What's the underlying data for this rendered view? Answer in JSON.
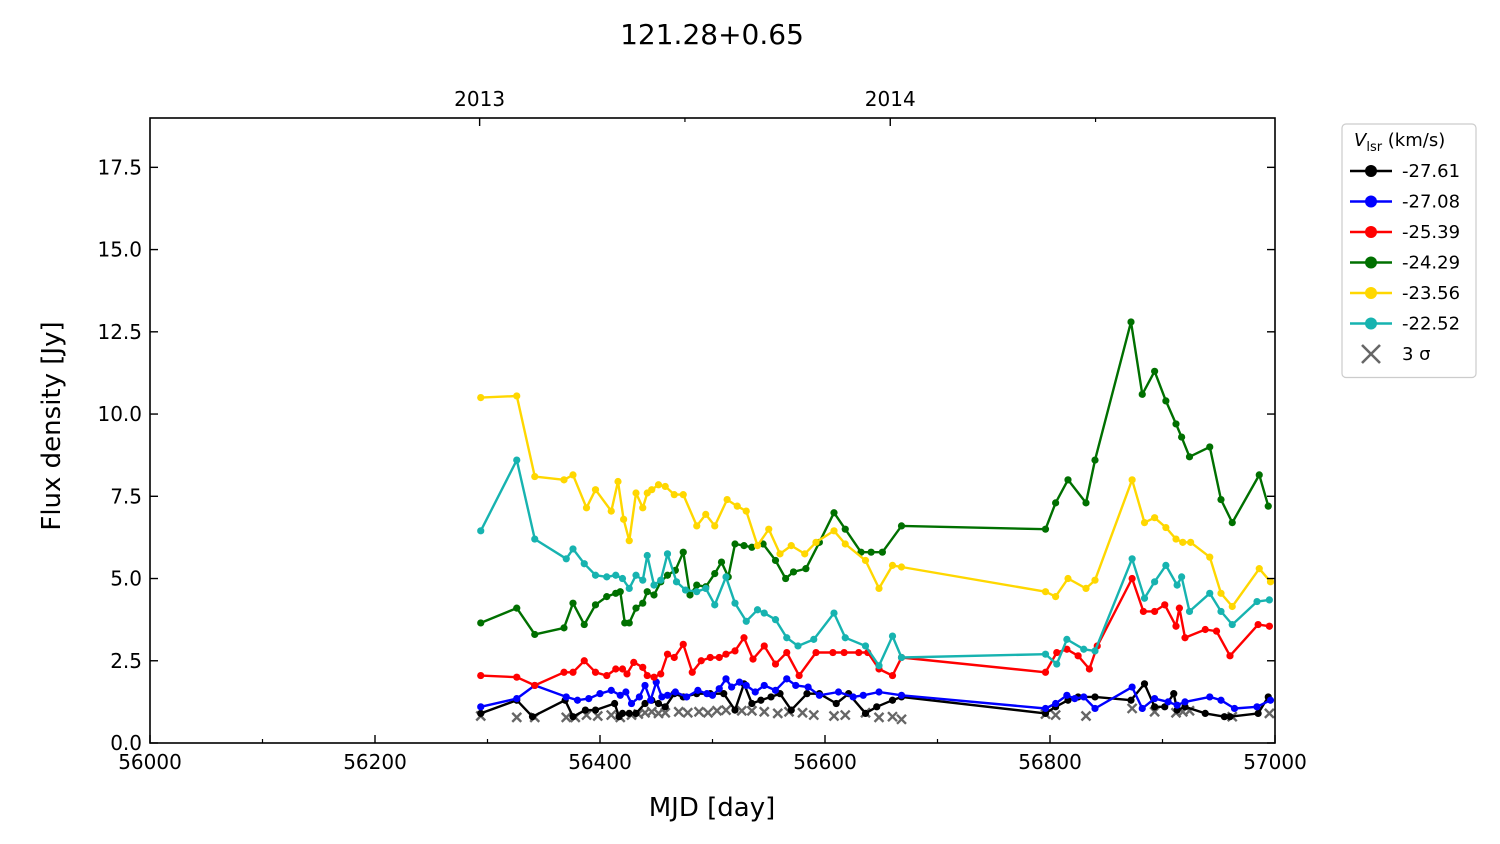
{
  "chart_data": {
    "type": "line",
    "title": "121.28+0.65",
    "xlabel": "MJD [day]",
    "ylabel": "Flux density [Jy]",
    "xlim": [
      56000,
      57000
    ],
    "ylim": [
      0.0,
      19.0
    ],
    "xticks": [
      56000,
      56200,
      56400,
      56600,
      56800,
      57000
    ],
    "xtick_labels": [
      "56000",
      "56200",
      "56400",
      "56600",
      "56800",
      "57000"
    ],
    "yticks": [
      0.0,
      2.5,
      5.0,
      7.5,
      10.0,
      12.5,
      15.0,
      17.5
    ],
    "ytick_labels": [
      "0.0",
      "2.5",
      "5.0",
      "7.5",
      "10.0",
      "12.5",
      "15.0",
      "17.5"
    ],
    "top_axis": {
      "ticks": [
        56293,
        56658
      ],
      "tick_labels": [
        "2013",
        "2014"
      ]
    },
    "legend": {
      "title_main": "V",
      "title_sub": "lsr",
      "title_unit": " (km/s)",
      "placement": "outside-right",
      "sigma_label": "3 σ"
    },
    "series": [
      {
        "name": "-27.61",
        "color": "#000000",
        "x": [
          56294,
          56326,
          56340,
          56369,
          56376,
          56387,
          56396,
          56413,
          56417,
          56420,
          56426,
          56432,
          56440,
          56446,
          56452,
          56458,
          56466,
          56474,
          56486,
          56498,
          56510,
          56520,
          56528,
          56535,
          56543,
          56552,
          56560,
          56570,
          56584,
          56595,
          56610,
          56621,
          56636,
          56646,
          56660,
          56668,
          56796,
          56805,
          56816,
          56825,
          56840,
          56872,
          56884,
          56893,
          56902,
          56910,
          56913,
          56920,
          56938,
          56955,
          56960,
          56985,
          56994
        ],
        "y": [
          0.9,
          1.3,
          0.8,
          1.3,
          0.8,
          1.0,
          1.0,
          1.2,
          0.8,
          0.9,
          0.9,
          0.9,
          1.2,
          1.3,
          1.2,
          1.1,
          1.5,
          1.4,
          1.5,
          1.5,
          1.5,
          1.0,
          1.8,
          1.2,
          1.3,
          1.4,
          1.5,
          1.0,
          1.5,
          1.5,
          1.2,
          1.5,
          0.9,
          1.1,
          1.3,
          1.4,
          0.9,
          1.1,
          1.3,
          1.4,
          1.4,
          1.3,
          1.8,
          1.1,
          1.1,
          1.5,
          1.0,
          1.1,
          0.9,
          0.8,
          0.8,
          0.9,
          1.4
        ]
      },
      {
        "name": "-27.08",
        "color": "#0000ff",
        "x": [
          56294,
          56326,
          56342,
          56370,
          56380,
          56390,
          56400,
          56410,
          56418,
          56423,
          56428,
          56435,
          56440,
          56445,
          56450,
          56455,
          56460,
          56467,
          56477,
          56487,
          56495,
          56500,
          56506,
          56512,
          56517,
          56524,
          56530,
          56538,
          56546,
          56556,
          56566,
          56574,
          56585,
          56595,
          56612,
          56625,
          56634,
          56648,
          56668,
          56796,
          56805,
          56815,
          56822,
          56830,
          56840,
          56873,
          56882,
          56893,
          56905,
          56913,
          56920,
          56942,
          56952,
          56964,
          56984,
          56996
        ],
        "y": [
          1.1,
          1.35,
          1.75,
          1.4,
          1.3,
          1.35,
          1.5,
          1.6,
          1.45,
          1.55,
          1.2,
          1.4,
          1.75,
          1.3,
          1.85,
          1.4,
          1.45,
          1.55,
          1.4,
          1.6,
          1.5,
          1.45,
          1.65,
          1.95,
          1.7,
          1.85,
          1.75,
          1.55,
          1.75,
          1.6,
          1.95,
          1.75,
          1.7,
          1.45,
          1.55,
          1.4,
          1.45,
          1.55,
          1.45,
          1.05,
          1.2,
          1.45,
          1.35,
          1.4,
          1.05,
          1.7,
          1.05,
          1.35,
          1.25,
          1.15,
          1.25,
          1.4,
          1.3,
          1.05,
          1.1,
          1.3
        ]
      },
      {
        "name": "-25.39",
        "color": "#ff0000",
        "x": [
          56294,
          56326,
          56342,
          56368,
          56376,
          56386,
          56396,
          56406,
          56414,
          56420,
          56424,
          56430,
          56438,
          56442,
          56448,
          56454,
          56460,
          56466,
          56474,
          56482,
          56490,
          56498,
          56506,
          56512,
          56520,
          56528,
          56536,
          56546,
          56556,
          56566,
          56577,
          56592,
          56607,
          56617,
          56630,
          56638,
          56648,
          56660,
          56668,
          56796,
          56806,
          56815,
          56825,
          56835,
          56842,
          56873,
          56883,
          56893,
          56902,
          56912,
          56915,
          56920,
          56938,
          56948,
          56960,
          56985,
          56995
        ],
        "y": [
          2.05,
          2.0,
          1.75,
          2.15,
          2.15,
          2.5,
          2.15,
          2.05,
          2.25,
          2.25,
          2.1,
          2.45,
          2.3,
          2.05,
          2.0,
          2.1,
          2.7,
          2.6,
          3.0,
          2.15,
          2.5,
          2.6,
          2.6,
          2.7,
          2.8,
          3.2,
          2.55,
          2.95,
          2.4,
          2.75,
          2.05,
          2.75,
          2.75,
          2.75,
          2.75,
          2.75,
          2.25,
          2.05,
          2.6,
          2.15,
          2.75,
          2.85,
          2.65,
          2.25,
          2.95,
          5.0,
          4.0,
          4.0,
          4.2,
          3.55,
          4.1,
          3.2,
          3.45,
          3.4,
          2.65,
          3.6,
          3.55
        ]
      },
      {
        "name": "-24.29",
        "color": "#007000",
        "x": [
          56294,
          56326,
          56342,
          56368,
          56376,
          56386,
          56396,
          56406,
          56414,
          56418,
          56422,
          56426,
          56432,
          56438,
          56442,
          56448,
          56454,
          56460,
          56467,
          56474,
          56480,
          56486,
          56494,
          56502,
          56508,
          56514,
          56520,
          56528,
          56535,
          56545,
          56556,
          56565,
          56572,
          56583,
          56595,
          56608,
          56618,
          56632,
          56641,
          56651,
          56668,
          56796,
          56805,
          56816,
          56832,
          56840,
          56872,
          56882,
          56893,
          56903,
          56912,
          56917,
          56924,
          56942,
          56952,
          56962,
          56986,
          56994
        ],
        "y": [
          3.65,
          4.1,
          3.3,
          3.5,
          4.25,
          3.6,
          4.2,
          4.45,
          4.55,
          4.6,
          3.65,
          3.65,
          4.1,
          4.25,
          4.6,
          4.5,
          4.9,
          5.1,
          5.25,
          5.8,
          4.5,
          4.8,
          4.75,
          5.15,
          5.5,
          5.05,
          6.05,
          6.0,
          5.95,
          6.05,
          5.55,
          5.0,
          5.2,
          5.3,
          6.1,
          7.0,
          6.5,
          5.8,
          5.8,
          5.8,
          6.6,
          6.5,
          7.3,
          8.0,
          7.3,
          8.6,
          12.8,
          10.6,
          11.3,
          10.4,
          9.7,
          9.3,
          8.7,
          9.0,
          7.4,
          6.7,
          8.15,
          7.2
        ]
      },
      {
        "name": "-23.56",
        "color": "#ffd700",
        "x": [
          56294,
          56326,
          56342,
          56368,
          56376,
          56388,
          56396,
          56410,
          56416,
          56421,
          56426,
          56432,
          56438,
          56442,
          56446,
          56452,
          56458,
          56466,
          56474,
          56486,
          56494,
          56502,
          56513,
          56522,
          56530,
          56540,
          56550,
          56560,
          56570,
          56582,
          56592,
          56608,
          56618,
          56636,
          56648,
          56660,
          56668,
          56796,
          56805,
          56816,
          56832,
          56840,
          56873,
          56884,
          56893,
          56903,
          56912,
          56918,
          56925,
          56942,
          56952,
          56962,
          56986,
          56996
        ],
        "y": [
          10.5,
          10.55,
          8.1,
          8.0,
          8.15,
          7.15,
          7.7,
          7.05,
          7.95,
          6.8,
          6.15,
          7.6,
          7.15,
          7.6,
          7.7,
          7.85,
          7.8,
          7.55,
          7.55,
          6.6,
          6.95,
          6.6,
          7.4,
          7.2,
          7.05,
          6.0,
          6.5,
          5.75,
          6.0,
          5.75,
          6.1,
          6.45,
          6.05,
          5.55,
          4.7,
          5.4,
          5.35,
          4.6,
          4.45,
          5.0,
          4.7,
          4.95,
          8.0,
          6.7,
          6.85,
          6.55,
          6.2,
          6.1,
          6.1,
          5.65,
          4.55,
          4.15,
          5.3,
          4.9
        ]
      },
      {
        "name": "-22.52",
        "color": "#17b3b0",
        "x": [
          56294,
          56326,
          56342,
          56370,
          56376,
          56386,
          56396,
          56406,
          56414,
          56420,
          56426,
          56432,
          56438,
          56442,
          56448,
          56454,
          56460,
          56468,
          56476,
          56486,
          56494,
          56502,
          56512,
          56520,
          56530,
          56540,
          56546,
          56556,
          56566,
          56576,
          56590,
          56608,
          56618,
          56636,
          56648,
          56660,
          56668,
          56796,
          56806,
          56815,
          56830,
          56840,
          56873,
          56884,
          56893,
          56903,
          56913,
          56917,
          56924,
          56942,
          56952,
          56962,
          56984,
          56995
        ],
        "y": [
          6.45,
          8.6,
          6.2,
          5.6,
          5.9,
          5.45,
          5.1,
          5.05,
          5.1,
          5.0,
          4.7,
          5.1,
          4.95,
          5.7,
          4.8,
          4.95,
          5.75,
          4.9,
          4.65,
          4.6,
          4.7,
          4.2,
          5.05,
          4.25,
          3.7,
          4.05,
          3.95,
          3.75,
          3.2,
          2.95,
          3.15,
          3.95,
          3.2,
          2.95,
          2.35,
          3.25,
          2.6,
          2.7,
          2.4,
          3.15,
          2.85,
          2.8,
          5.6,
          4.4,
          4.9,
          5.4,
          4.8,
          5.05,
          4.0,
          4.55,
          4.0,
          3.6,
          4.3,
          4.35
        ]
      }
    ],
    "sigma_3": {
      "name": "3 σ",
      "color": "#666666",
      "x": [
        56294,
        56326,
        56342,
        56370,
        56378,
        56388,
        56398,
        56410,
        56418,
        56428,
        56434,
        56440,
        56446,
        56452,
        56458,
        56470,
        56478,
        56488,
        56496,
        56504,
        56512,
        56526,
        56535,
        56546,
        56558,
        56568,
        56580,
        56590,
        56608,
        56618,
        56636,
        56648,
        56660,
        56668,
        56796,
        56805,
        56832,
        56873,
        56893,
        56912,
        56918,
        56924,
        56962,
        56995
      ],
      "y": [
        0.82,
        0.78,
        0.78,
        0.78,
        0.78,
        0.85,
        0.82,
        0.85,
        0.78,
        0.85,
        0.88,
        0.92,
        0.95,
        0.9,
        0.92,
        0.95,
        0.92,
        0.95,
        0.92,
        0.98,
        1.0,
        0.98,
        0.98,
        0.95,
        0.9,
        0.95,
        0.92,
        0.85,
        0.82,
        0.85,
        0.92,
        0.78,
        0.8,
        0.72,
        0.88,
        0.85,
        0.82,
        1.05,
        0.95,
        0.92,
        0.95,
        0.98,
        0.8,
        0.9
      ]
    }
  }
}
